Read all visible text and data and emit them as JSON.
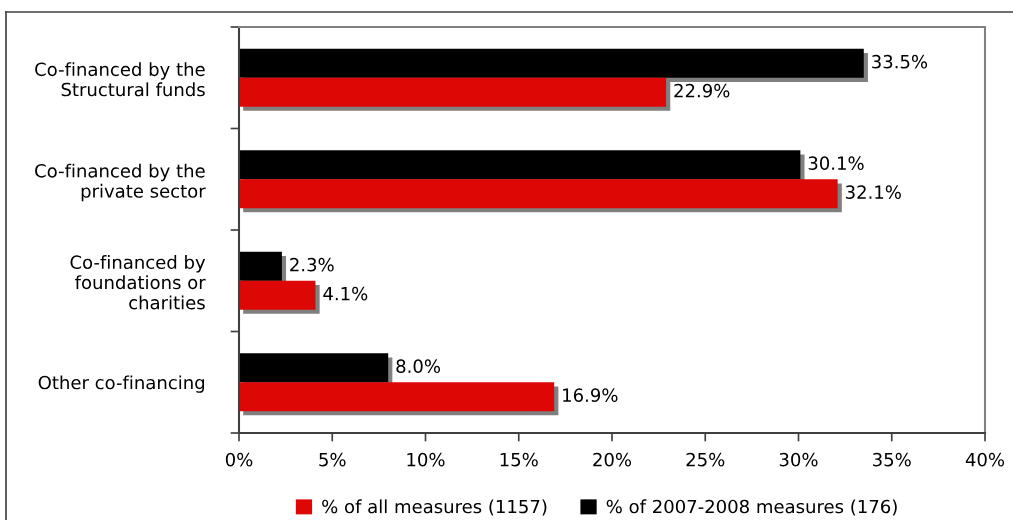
{
  "chart_data": {
    "type": "bar",
    "orientation": "horizontal",
    "categories": [
      "Co-financed by the\nStructural funds",
      "Co-financed by the\nprivate sector",
      "Co-financed by\nfoundations or\ncharities",
      "Other co-financing"
    ],
    "series": [
      {
        "name": "% of all measures (1157)",
        "color": "#dd0806",
        "values": [
          22.9,
          32.1,
          4.1,
          16.9
        ],
        "value_labels": [
          "22.9%",
          "32.1%",
          "4.1%",
          "16.9%"
        ]
      },
      {
        "name": "% of 2007-2008 measures (176)",
        "color": "#000000",
        "values": [
          33.5,
          30.1,
          2.3,
          8.0
        ],
        "value_labels": [
          "33.5%",
          "30.1%",
          "2.3%",
          "8.0%"
        ]
      }
    ],
    "xlim": [
      0,
      40
    ],
    "xticks": [
      {
        "value": 0,
        "label": "0%"
      },
      {
        "value": 5,
        "label": "5%"
      },
      {
        "value": 10,
        "label": "10%"
      },
      {
        "value": 15,
        "label": "15%"
      },
      {
        "value": 20,
        "label": "20%"
      },
      {
        "value": 25,
        "label": "25%"
      },
      {
        "value": 30,
        "label": "30%"
      },
      {
        "value": 35,
        "label": "35%"
      },
      {
        "value": 40,
        "label": "40%"
      }
    ],
    "grid": false,
    "legend": "bottom"
  }
}
